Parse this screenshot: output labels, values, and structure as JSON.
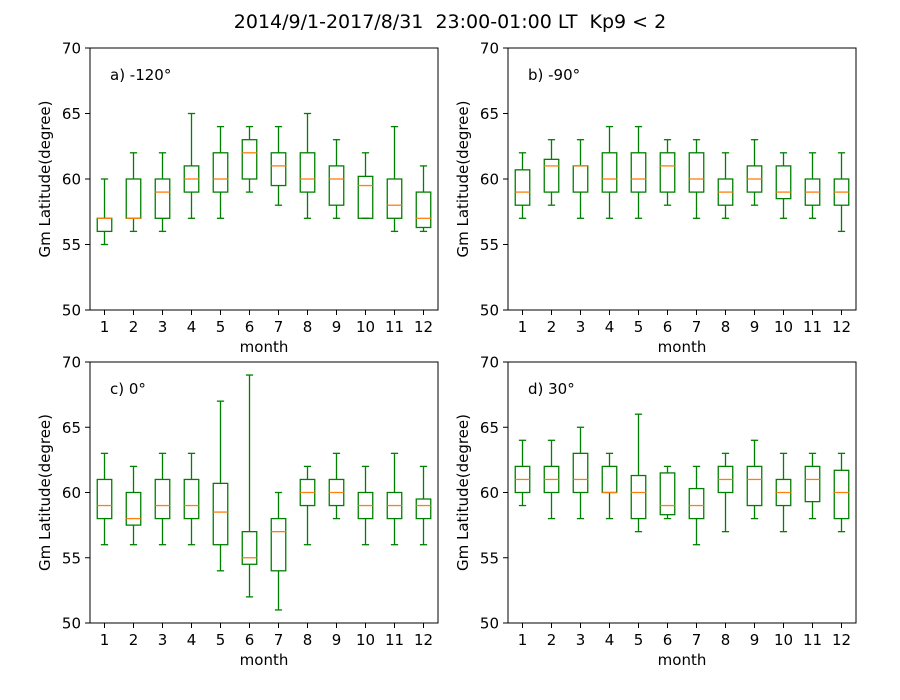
{
  "figure": {
    "suptitle": "2014/9/1-2017/8/31  23:00-01:00 LT  Kp9 < 2"
  },
  "style": {
    "box_color": "#008000",
    "median_color": "#ff7f0e",
    "axis_color": "#000000"
  },
  "chart_data": [
    {
      "type": "box",
      "panel_label": "a) -120°",
      "xlabel": "month",
      "ylabel": "Gm Latitude(degree)",
      "ylim": [
        50,
        70
      ],
      "yticks": [
        50,
        55,
        60,
        65,
        70
      ],
      "categories": [
        "1",
        "2",
        "3",
        "4",
        "5",
        "6",
        "7",
        "8",
        "9",
        "10",
        "11",
        "12"
      ],
      "boxes": [
        {
          "whislo": 55,
          "q1": 56,
          "med": 57,
          "q3": 57,
          "whishi": 60
        },
        {
          "whislo": 56,
          "q1": 57,
          "med": 57,
          "q3": 60,
          "whishi": 62
        },
        {
          "whislo": 56,
          "q1": 57,
          "med": 59,
          "q3": 60,
          "whishi": 62
        },
        {
          "whislo": 57,
          "q1": 59,
          "med": 60,
          "q3": 61,
          "whishi": 65
        },
        {
          "whislo": 57,
          "q1": 59,
          "med": 60,
          "q3": 62,
          "whishi": 64
        },
        {
          "whislo": 59,
          "q1": 60,
          "med": 62,
          "q3": 63,
          "whishi": 64
        },
        {
          "whislo": 58,
          "q1": 59.5,
          "med": 61,
          "q3": 62,
          "whishi": 64
        },
        {
          "whislo": 57,
          "q1": 59,
          "med": 60,
          "q3": 62,
          "whishi": 65
        },
        {
          "whislo": 57,
          "q1": 58,
          "med": 60,
          "q3": 61,
          "whishi": 63
        },
        {
          "whislo": 57,
          "q1": 57,
          "med": 59.5,
          "q3": 60.2,
          "whishi": 62
        },
        {
          "whislo": 56,
          "q1": 57,
          "med": 58,
          "q3": 60,
          "whishi": 64
        },
        {
          "whislo": 56,
          "q1": 56.3,
          "med": 57,
          "q3": 59,
          "whishi": 61
        }
      ]
    },
    {
      "type": "box",
      "panel_label": "b) -90°",
      "xlabel": "month",
      "ylabel": "Gm Latitude(degree)",
      "ylim": [
        50,
        70
      ],
      "yticks": [
        50,
        55,
        60,
        65,
        70
      ],
      "categories": [
        "1",
        "2",
        "3",
        "4",
        "5",
        "6",
        "7",
        "8",
        "9",
        "10",
        "11",
        "12"
      ],
      "boxes": [
        {
          "whislo": 57,
          "q1": 58,
          "med": 59,
          "q3": 60.7,
          "whishi": 62
        },
        {
          "whislo": 58,
          "q1": 59,
          "med": 61,
          "q3": 61.5,
          "whishi": 63
        },
        {
          "whislo": 57,
          "q1": 59,
          "med": 61,
          "q3": 61,
          "whishi": 63
        },
        {
          "whislo": 57,
          "q1": 59,
          "med": 60,
          "q3": 62,
          "whishi": 64
        },
        {
          "whislo": 57,
          "q1": 59,
          "med": 60,
          "q3": 62,
          "whishi": 64
        },
        {
          "whislo": 58,
          "q1": 59,
          "med": 61,
          "q3": 62,
          "whishi": 63
        },
        {
          "whislo": 57,
          "q1": 59,
          "med": 60,
          "q3": 62,
          "whishi": 63
        },
        {
          "whislo": 57,
          "q1": 58,
          "med": 59,
          "q3": 60,
          "whishi": 62
        },
        {
          "whislo": 58,
          "q1": 59,
          "med": 60,
          "q3": 61,
          "whishi": 63
        },
        {
          "whislo": 57,
          "q1": 58.5,
          "med": 59,
          "q3": 61,
          "whishi": 62
        },
        {
          "whislo": 57,
          "q1": 58,
          "med": 59,
          "q3": 60,
          "whishi": 62
        },
        {
          "whislo": 56,
          "q1": 58,
          "med": 59,
          "q3": 60,
          "whishi": 62
        }
      ]
    },
    {
      "type": "box",
      "panel_label": "c) 0°",
      "xlabel": "month",
      "ylabel": "Gm Latitude(degree)",
      "ylim": [
        50,
        70
      ],
      "yticks": [
        50,
        55,
        60,
        65,
        70
      ],
      "categories": [
        "1",
        "2",
        "3",
        "4",
        "5",
        "6",
        "7",
        "8",
        "9",
        "10",
        "11",
        "12"
      ],
      "boxes": [
        {
          "whislo": 56,
          "q1": 58,
          "med": 59,
          "q3": 61,
          "whishi": 63
        },
        {
          "whislo": 56,
          "q1": 57.5,
          "med": 58,
          "q3": 60,
          "whishi": 62
        },
        {
          "whislo": 56,
          "q1": 58,
          "med": 59,
          "q3": 61,
          "whishi": 63
        },
        {
          "whislo": 56,
          "q1": 58,
          "med": 59,
          "q3": 61,
          "whishi": 63
        },
        {
          "whislo": 54,
          "q1": 56,
          "med": 58.5,
          "q3": 60.7,
          "whishi": 67
        },
        {
          "whislo": 52,
          "q1": 54.5,
          "med": 55,
          "q3": 57,
          "whishi": 69
        },
        {
          "whislo": 51,
          "q1": 54,
          "med": 57,
          "q3": 58,
          "whishi": 60
        },
        {
          "whislo": 56,
          "q1": 59,
          "med": 60,
          "q3": 61,
          "whishi": 62
        },
        {
          "whislo": 58,
          "q1": 59,
          "med": 60,
          "q3": 61,
          "whishi": 63
        },
        {
          "whislo": 56,
          "q1": 58,
          "med": 59,
          "q3": 60,
          "whishi": 62
        },
        {
          "whislo": 56,
          "q1": 58,
          "med": 59,
          "q3": 60,
          "whishi": 63
        },
        {
          "whislo": 56,
          "q1": 58,
          "med": 59,
          "q3": 59.5,
          "whishi": 62
        }
      ]
    },
    {
      "type": "box",
      "panel_label": "d) 30°",
      "xlabel": "month",
      "ylabel": "Gm Latitude(degree)",
      "ylim": [
        50,
        70
      ],
      "yticks": [
        50,
        55,
        60,
        65,
        70
      ],
      "categories": [
        "1",
        "2",
        "3",
        "4",
        "5",
        "6",
        "7",
        "8",
        "9",
        "10",
        "11",
        "12"
      ],
      "boxes": [
        {
          "whislo": 59,
          "q1": 60,
          "med": 61,
          "q3": 62,
          "whishi": 64
        },
        {
          "whislo": 58,
          "q1": 60,
          "med": 61,
          "q3": 62,
          "whishi": 64
        },
        {
          "whislo": 58,
          "q1": 60,
          "med": 61,
          "q3": 63,
          "whishi": 65
        },
        {
          "whislo": 58,
          "q1": 60,
          "med": 60,
          "q3": 62,
          "whishi": 63
        },
        {
          "whislo": 57,
          "q1": 58,
          "med": 60,
          "q3": 61.3,
          "whishi": 66
        },
        {
          "whislo": 58,
          "q1": 58.3,
          "med": 59,
          "q3": 61.5,
          "whishi": 62
        },
        {
          "whislo": 56,
          "q1": 58,
          "med": 59,
          "q3": 60.3,
          "whishi": 62
        },
        {
          "whislo": 57,
          "q1": 60,
          "med": 61,
          "q3": 62,
          "whishi": 63
        },
        {
          "whislo": 58,
          "q1": 59,
          "med": 61,
          "q3": 62,
          "whishi": 64
        },
        {
          "whislo": 57,
          "q1": 59,
          "med": 60,
          "q3": 61,
          "whishi": 63
        },
        {
          "whislo": 58,
          "q1": 59.3,
          "med": 61,
          "q3": 62,
          "whishi": 63
        },
        {
          "whislo": 57,
          "q1": 58,
          "med": 60,
          "q3": 61.7,
          "whishi": 63
        }
      ]
    }
  ]
}
